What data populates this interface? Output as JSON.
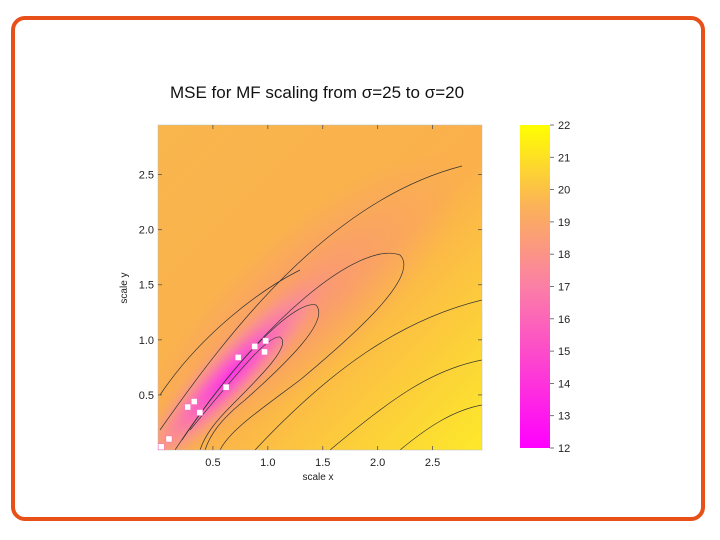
{
  "slide": {
    "title": "MSE for MF scaling from σ=25 to σ=20",
    "accent_color": "#e8501a"
  },
  "chart_data": {
    "type": "heatmap",
    "title": "MSE for MF scaling from σ=25 to σ=20",
    "xlabel": "scale x",
    "ylabel": "scale y",
    "xlim": [
      0,
      2.95
    ],
    "ylim": [
      0,
      2.95
    ],
    "xticks": [
      0.5,
      1.0,
      1.5,
      2.0,
      2.5
    ],
    "xtick_labels": [
      "0.5",
      "1.0",
      "1.5",
      "2.0",
      "2.5"
    ],
    "yticks": [
      0.5,
      1.0,
      1.5,
      2.0,
      2.5
    ],
    "ytick_labels": [
      "0.5",
      "1.0",
      "1.5",
      "2.0",
      "2.5"
    ],
    "colorbar": {
      "min": 12,
      "max": 22,
      "ticks": [
        12,
        13,
        14,
        15,
        16,
        17,
        18,
        19,
        20,
        21,
        22
      ],
      "tick_labels": [
        "12",
        "13",
        "14",
        "15",
        "16",
        "17",
        "18",
        "19",
        "20",
        "21",
        "22"
      ],
      "colors": [
        "#ff00ff",
        "#ffff00"
      ]
    },
    "minimum_along": "diagonal y ≈ x",
    "markers": [
      {
        "x": 0.03,
        "y": 0.03
      },
      {
        "x": 0.1,
        "y": 0.1
      },
      {
        "x": 0.27,
        "y": 0.39
      },
      {
        "x": 0.33,
        "y": 0.44
      },
      {
        "x": 0.38,
        "y": 0.34
      },
      {
        "x": 0.62,
        "y": 0.57
      },
      {
        "x": 0.73,
        "y": 0.84
      },
      {
        "x": 0.88,
        "y": 0.94
      },
      {
        "x": 0.97,
        "y": 0.89
      },
      {
        "x": 0.98,
        "y": 0.99
      }
    ],
    "grid": false,
    "legend": "colorbar-right"
  }
}
